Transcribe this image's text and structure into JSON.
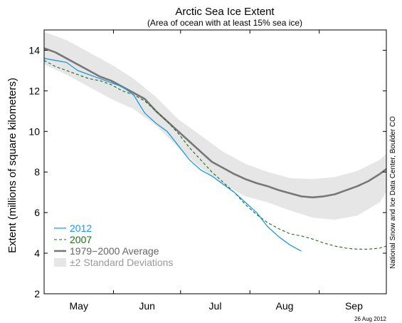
{
  "chart_data": {
    "type": "line",
    "title": "Arctic Sea Ice Extent",
    "subtitle": "(Area of ocean with at least 15% sea ice)",
    "ylabel": "Extent (millions of square kilometers)",
    "xlabel": "",
    "ylim": [
      2,
      15
    ],
    "yticks": [
      2,
      4,
      6,
      8,
      10,
      12,
      14
    ],
    "xlim": [
      0,
      153
    ],
    "xticks": [
      {
        "label": "May",
        "x": 15.5
      },
      {
        "label": "Jun",
        "x": 46
      },
      {
        "label": "Jul",
        "x": 76.5
      },
      {
        "label": "Aug",
        "x": 107.5
      },
      {
        "label": "Sep",
        "x": 138.5
      }
    ],
    "minor_ticks_x": [
      0,
      31,
      61,
      92,
      123,
      153
    ],
    "grid": false,
    "legend_position": "bottom-left",
    "series": [
      {
        "name": "2012",
        "color": "#1a9be0",
        "style": "solid",
        "x": [
          0,
          5,
          10,
          15,
          20,
          25,
          30,
          35,
          40,
          45,
          50,
          55,
          60,
          65,
          70,
          75,
          80,
          85,
          90,
          95,
          100,
          105,
          110,
          115
        ],
        "y": [
          13.6,
          13.5,
          13.4,
          13.0,
          12.8,
          12.6,
          12.4,
          12.2,
          11.8,
          10.9,
          10.4,
          10.0,
          9.3,
          8.6,
          8.1,
          7.8,
          7.4,
          7.0,
          6.5,
          6.0,
          5.3,
          4.8,
          4.4,
          4.1
        ]
      },
      {
        "name": "2007",
        "color": "#1f6a1f",
        "style": "dashed",
        "x": [
          0,
          5,
          10,
          15,
          20,
          25,
          30,
          35,
          40,
          45,
          50,
          55,
          60,
          65,
          70,
          75,
          80,
          85,
          90,
          95,
          100,
          105,
          110,
          115,
          120,
          125,
          130,
          135,
          140,
          145,
          150,
          153
        ],
        "y": [
          13.5,
          13.2,
          13.0,
          12.8,
          12.6,
          12.5,
          12.3,
          12.0,
          11.8,
          11.5,
          11.0,
          10.5,
          9.9,
          9.2,
          8.6,
          8.0,
          7.5,
          7.0,
          6.4,
          5.9,
          5.5,
          5.2,
          4.95,
          4.85,
          4.7,
          4.5,
          4.35,
          4.25,
          4.2,
          4.2,
          4.25,
          4.35
        ]
      },
      {
        "name": "1979−2000 Average",
        "color": "#777777",
        "style": "solid",
        "x": [
          0,
          5,
          10,
          15,
          20,
          25,
          30,
          35,
          40,
          45,
          50,
          55,
          60,
          65,
          70,
          75,
          80,
          85,
          90,
          95,
          100,
          105,
          110,
          115,
          120,
          125,
          130,
          135,
          140,
          145,
          150,
          153
        ],
        "y": [
          14.1,
          13.9,
          13.6,
          13.3,
          13.0,
          12.7,
          12.5,
          12.2,
          11.9,
          11.6,
          11.0,
          10.5,
          10.0,
          9.5,
          9.0,
          8.5,
          8.2,
          7.9,
          7.65,
          7.45,
          7.3,
          7.1,
          6.95,
          6.8,
          6.75,
          6.8,
          6.9,
          7.1,
          7.3,
          7.55,
          7.9,
          8.15
        ]
      }
    ],
    "band": {
      "name": "±2 Standard Deviations",
      "color": "#e6e6e6",
      "x": [
        0,
        10,
        20,
        30,
        40,
        50,
        60,
        70,
        80,
        90,
        100,
        110,
        120,
        130,
        140,
        150,
        153
      ],
      "upper": [
        14.9,
        14.5,
        13.9,
        13.3,
        12.6,
        11.7,
        10.6,
        9.8,
        9.0,
        8.4,
        8.0,
        7.7,
        7.65,
        7.75,
        8.05,
        8.6,
        8.9
      ],
      "lower": [
        13.3,
        12.8,
        12.2,
        11.6,
        11.1,
        10.3,
        9.2,
        8.2,
        7.4,
        6.8,
        6.5,
        6.1,
        5.75,
        5.65,
        5.85,
        6.5,
        7.0
      ]
    },
    "annotations": {
      "source": "National Snow and Ice Data Center, Boulder CO",
      "date": "26 Aug 2012"
    }
  }
}
